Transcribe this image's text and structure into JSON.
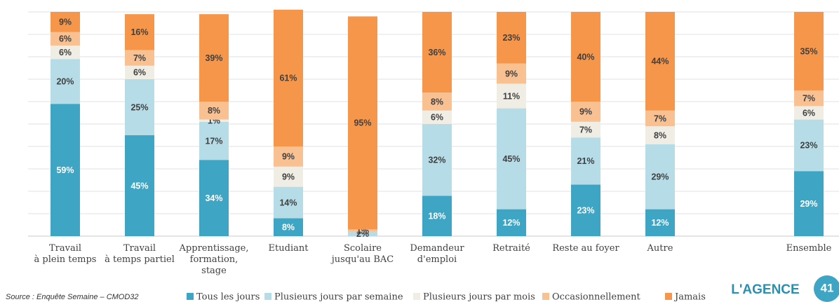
{
  "chart_data": {
    "type": "stacked_bar",
    "categories": [
      "Travail\nà plein temps",
      "Travail\nà temps partiel",
      "Apprentissage,\nformation,\nstage",
      "Etudiant",
      "Scolaire\njusqu'au BAC",
      "Demandeur\nd'emploi",
      "Retraité",
      "Reste au foyer",
      "Autre",
      "Ensemble"
    ],
    "series": [
      {
        "name": "Tous les jours",
        "color": "#3ea6c4",
        "values": [
          59,
          45,
          34,
          8,
          0,
          18,
          12,
          23,
          12,
          29
        ],
        "value_labels": [
          "59%",
          "45%",
          "34%",
          "8%",
          null,
          "18%",
          "12%",
          "23%",
          "12%",
          "29%"
        ]
      },
      {
        "name": "Plusieurs jours par semaine",
        "color": "#b6dce8",
        "values": [
          20,
          25,
          17,
          14,
          2,
          32,
          45,
          21,
          29,
          23
        ],
        "value_labels": [
          "20%",
          "25%",
          "17%",
          "14%",
          "2%",
          "32%",
          "45%",
          "21%",
          "29%",
          "23%"
        ]
      },
      {
        "name": "Plusieurs jours par mois",
        "color": "#efede4",
        "values": [
          6,
          6,
          1,
          9,
          0,
          6,
          11,
          7,
          8,
          6
        ],
        "value_labels": [
          "6%",
          "6%",
          "1%",
          "9%",
          null,
          "6%",
          "11%",
          "7%",
          "8%",
          "6%"
        ]
      },
      {
        "name": "Occasionnellement",
        "color": "#f9c092",
        "values": [
          6,
          7,
          8,
          9,
          1,
          8,
          9,
          9,
          7,
          7
        ],
        "value_labels": [
          "6%",
          "7%",
          "8%",
          "9%",
          "1%",
          "8%",
          "9%",
          "9%",
          "7%",
          "7%"
        ]
      },
      {
        "name": "Jamais",
        "color": "#f5964a",
        "values": [
          9,
          16,
          39,
          61,
          95,
          36,
          23,
          40,
          44,
          35
        ],
        "value_labels": [
          "9%",
          "16%",
          "39%",
          "61%",
          "95%",
          "36%",
          "23%",
          "40%",
          "44%",
          "35%"
        ]
      }
    ],
    "ylim": [
      0,
      100
    ],
    "yticks": [
      0,
      10,
      20,
      30,
      40,
      50,
      60,
      70,
      80,
      90,
      100
    ],
    "grid": true,
    "source": "Source : Enquête Semaine – CMOD32",
    "logo": "L'AGENCE",
    "page_number": "41"
  }
}
